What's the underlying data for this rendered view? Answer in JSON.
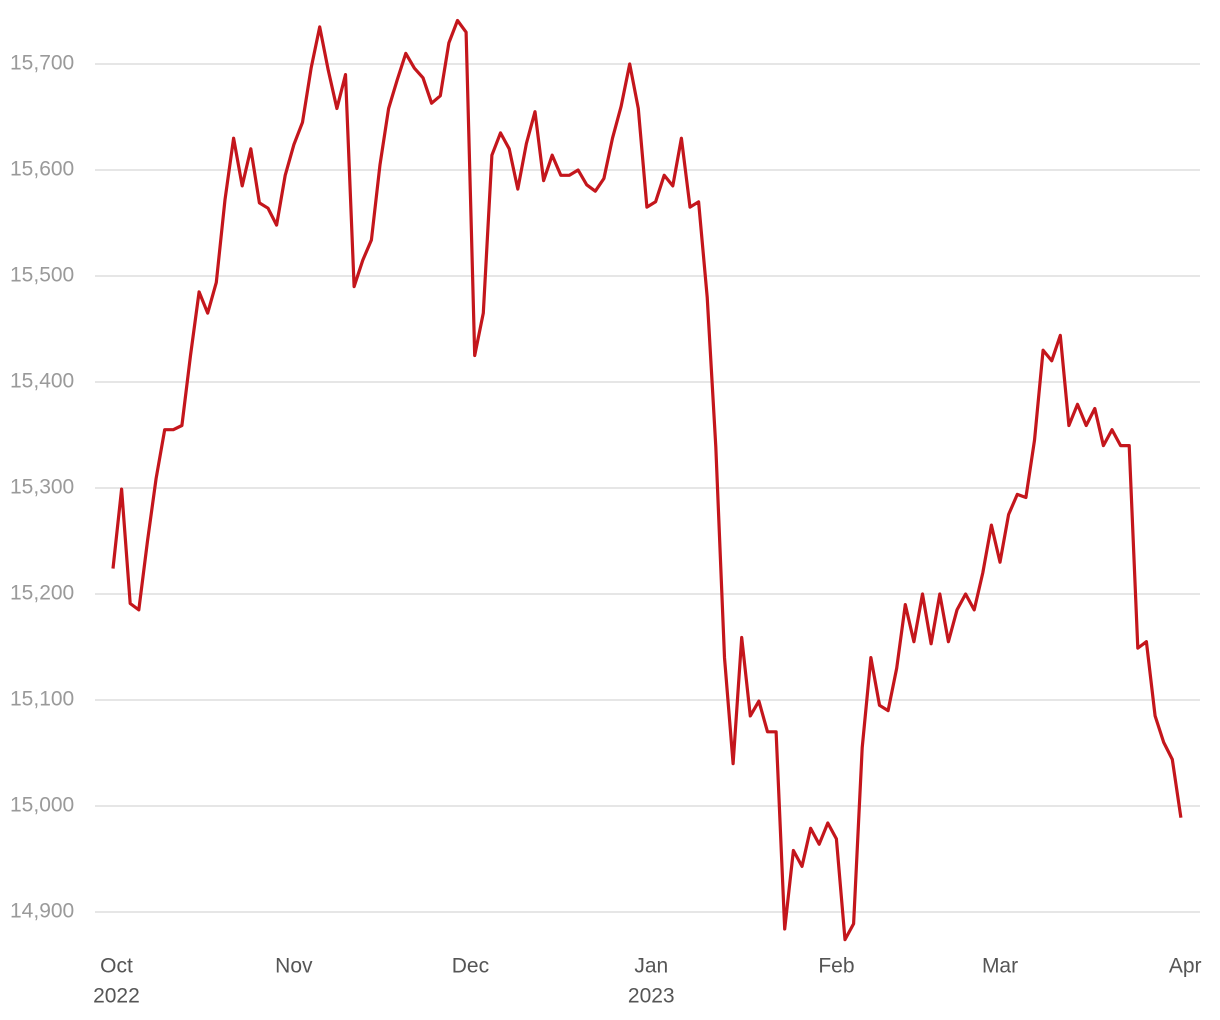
{
  "chart_data": {
    "type": "line",
    "series": [
      {
        "color": "#c4161c",
        "values": [
          15224,
          15299,
          15191,
          15185,
          15250,
          15309,
          15355,
          15355,
          15359,
          15425,
          15485,
          15465,
          15494,
          15572,
          15630,
          15585,
          15620,
          15569,
          15564,
          15548,
          15595,
          15624,
          15645,
          15696,
          15735,
          15694,
          15658,
          15690,
          15490,
          15515,
          15534,
          15605,
          15658,
          15685,
          15710,
          15696,
          15687,
          15663,
          15670,
          15720,
          15741,
          15730,
          15425,
          15465,
          15614,
          15635,
          15620,
          15582,
          15625,
          15655,
          15590,
          15614,
          15595,
          15595,
          15600,
          15586,
          15580,
          15592,
          15630,
          15660,
          15700,
          15658,
          15565,
          15570,
          15595,
          15585,
          15630,
          15565,
          15570,
          15480,
          15339,
          15140,
          15040,
          15159,
          15085,
          15099,
          15070,
          15070,
          14884,
          14958,
          14943,
          14979,
          14964,
          14984,
          14969,
          14874,
          14889,
          15055,
          15140,
          15095,
          15090,
          15130,
          15190,
          15155,
          15200,
          15153,
          15200,
          15155,
          15185,
          15200,
          15185,
          15220,
          15265,
          15230,
          15275,
          15294,
          15291,
          15345,
          15430,
          15420,
          15444,
          15359,
          15379,
          15359,
          15375,
          15340,
          15355,
          15340,
          15340,
          15149,
          15155,
          15085,
          15060,
          15044,
          14989
        ]
      }
    ],
    "xlim": [
      -0.5,
      125
    ],
    "xticks": [
      {
        "value": 0.4,
        "label": "Oct",
        "year": "2022"
      },
      {
        "value": 21,
        "label": "Nov"
      },
      {
        "value": 41.5,
        "label": "Dec"
      },
      {
        "value": 62.5,
        "label": "Jan",
        "year": "2023"
      },
      {
        "value": 84,
        "label": "Feb"
      },
      {
        "value": 103,
        "label": "Mar"
      },
      {
        "value": 124.5,
        "label": "Apr"
      }
    ],
    "ylim": [
      14860,
      15750
    ],
    "yticks": [
      {
        "value": 14900,
        "label": "14,900"
      },
      {
        "value": 15000,
        "label": "15,000"
      },
      {
        "value": 15100,
        "label": "15,100"
      },
      {
        "value": 15200,
        "label": "15,200"
      },
      {
        "value": 15300,
        "label": "15,300"
      },
      {
        "value": 15400,
        "label": "15,400"
      },
      {
        "value": 15500,
        "label": "15,500"
      },
      {
        "value": 15600,
        "label": "15,600"
      },
      {
        "value": 15700,
        "label": "15,700"
      }
    ],
    "grid": true
  }
}
